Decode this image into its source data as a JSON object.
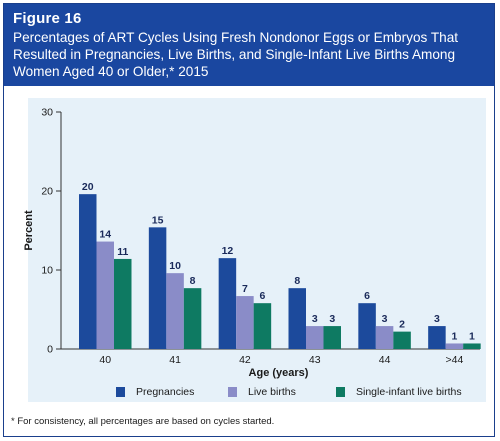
{
  "header": {
    "figure_label": "Figure 16",
    "title": "Percentages of ART Cycles Using Fresh Nondonor Eggs or Embryos That Resulted in Pregnancies, Live Births, and Single-Infant Live Births Among Women Aged 40 or Older,* 2015"
  },
  "colors": {
    "header_bg": "#1a47a0",
    "plot_bg": "#e6f1f9",
    "pregnancies": "#1c4a9c",
    "live_births": "#8a8cc8",
    "single_infant": "#0e7a62"
  },
  "chart_data": {
    "type": "bar",
    "categories": [
      "40",
      "41",
      "42",
      "43",
      "44",
      ">44"
    ],
    "series": [
      {
        "name": "Pregnancies",
        "values": [
          19.6,
          15.4,
          11.5,
          7.7,
          5.8,
          2.9
        ],
        "labels": [
          "20",
          "15",
          "12",
          "8",
          "6",
          "3"
        ]
      },
      {
        "name": "Live births",
        "values": [
          13.6,
          9.6,
          6.7,
          2.9,
          2.9,
          0.7
        ],
        "labels": [
          "14",
          "10",
          "7",
          "3",
          "3",
          "1"
        ]
      },
      {
        "name": "Single-infant live births",
        "values": [
          11.4,
          7.7,
          5.8,
          2.9,
          2.2,
          0.7
        ],
        "labels": [
          "11",
          "8",
          "6",
          "3",
          "2",
          "1"
        ]
      }
    ],
    "ylabel": "Percent",
    "xlabel": "Age (years)",
    "ylim": [
      0,
      30
    ],
    "yticks": [
      "0",
      "10",
      "20",
      "30"
    ],
    "grid": false,
    "legend_position": "bottom"
  },
  "footnote": "* For consistency, all percentages are based on cycles started."
}
